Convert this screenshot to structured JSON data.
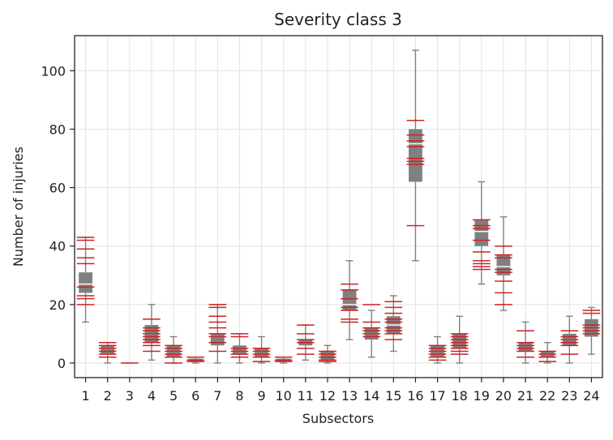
{
  "chart_data": {
    "type": "boxplot",
    "title": "Severity class 3",
    "xlabel": "Subsectors",
    "ylabel": "Number of injuries",
    "categories": [
      "1",
      "2",
      "3",
      "4",
      "5",
      "6",
      "7",
      "8",
      "9",
      "10",
      "11",
      "12",
      "13",
      "14",
      "15",
      "16",
      "17",
      "18",
      "19",
      "20",
      "21",
      "22",
      "23",
      "24"
    ],
    "ylim": [
      -5,
      112
    ],
    "yticks": [
      0,
      20,
      40,
      60,
      80,
      100
    ],
    "grid": true,
    "colors": {
      "box": "#808080",
      "whisker": "#808080",
      "median": "#ffffff",
      "points": "#cc2222"
    },
    "boxes": [
      {
        "whislo": 14,
        "q1": 24,
        "med": 27,
        "q3": 31,
        "whishi": 43
      },
      {
        "whislo": 0,
        "q1": 3,
        "med": 5,
        "q3": 6,
        "whishi": 7
      },
      {
        "whislo": 0,
        "q1": 0,
        "med": 0,
        "q3": 0,
        "whishi": 0
      },
      {
        "whislo": 1,
        "q1": 7,
        "med": 10,
        "q3": 13,
        "whishi": 20
      },
      {
        "whislo": 0,
        "q1": 2,
        "med": 4,
        "q3": 6,
        "whishi": 9
      },
      {
        "whislo": 0,
        "q1": 0.5,
        "med": 1,
        "q3": 1.5,
        "whishi": 2
      },
      {
        "whislo": 0,
        "q1": 6,
        "med": 9,
        "q3": 10,
        "whishi": 20
      },
      {
        "whislo": 0,
        "q1": 3,
        "med": 4,
        "q3": 6,
        "whishi": 10
      },
      {
        "whislo": 0,
        "q1": 2,
        "med": 4,
        "q3": 5,
        "whishi": 9
      },
      {
        "whislo": 0,
        "q1": 0.5,
        "med": 1,
        "q3": 1.5,
        "whishi": 2
      },
      {
        "whislo": 1,
        "q1": 6,
        "med": 7,
        "q3": 8,
        "whishi": 13
      },
      {
        "whislo": 0,
        "q1": 1,
        "med": 2,
        "q3": 4,
        "whishi": 6
      },
      {
        "whislo": 8,
        "q1": 18,
        "med": 20,
        "q3": 25,
        "whishi": 35
      },
      {
        "whislo": 2,
        "q1": 8,
        "med": 10,
        "q3": 12,
        "whishi": 18
      },
      {
        "whislo": 4,
        "q1": 10,
        "med": 13,
        "q3": 16,
        "whishi": 23
      },
      {
        "whislo": 35,
        "q1": 62,
        "med": 75,
        "q3": 80,
        "whishi": 107
      },
      {
        "whislo": 0,
        "q1": 2,
        "med": 4,
        "q3": 6,
        "whishi": 9
      },
      {
        "whislo": 0,
        "q1": 5,
        "med": 7,
        "q3": 10,
        "whishi": 16
      },
      {
        "whislo": 27,
        "q1": 40,
        "med": 45,
        "q3": 49,
        "whishi": 62
      },
      {
        "whislo": 18,
        "q1": 30,
        "med": 33,
        "q3": 37,
        "whishi": 50
      },
      {
        "whislo": 0,
        "q1": 4,
        "med": 6,
        "q3": 7,
        "whishi": 14
      },
      {
        "whislo": 0,
        "q1": 2,
        "med": 3,
        "q3": 4,
        "whishi": 7
      },
      {
        "whislo": 0,
        "q1": 6,
        "med": 8,
        "q3": 10,
        "whishi": 16
      },
      {
        "whislo": 3,
        "q1": 9,
        "med": 12,
        "q3": 15,
        "whishi": 19
      }
    ],
    "points": [
      [
        20,
        22,
        23,
        26,
        34,
        36,
        39,
        42,
        43
      ],
      [
        2,
        3,
        4,
        5,
        6,
        7
      ],
      [
        0
      ],
      [
        4,
        6,
        7,
        8,
        9,
        10,
        11,
        12,
        15
      ],
      [
        0,
        2,
        3,
        4,
        5,
        6
      ],
      [
        0.5,
        1,
        2
      ],
      [
        4,
        7,
        9,
        10,
        12,
        14,
        16,
        19,
        20
      ],
      [
        2,
        3,
        4,
        5,
        9,
        10
      ],
      [
        0.5,
        2,
        3,
        4,
        5
      ],
      [
        0.5,
        1,
        2
      ],
      [
        3,
        5,
        7,
        8,
        10,
        13
      ],
      [
        0.5,
        1,
        2,
        3,
        4
      ],
      [
        14,
        15,
        18,
        19,
        22,
        25,
        27
      ],
      [
        9,
        10,
        11,
        12,
        14,
        20
      ],
      [
        8,
        10,
        11,
        12,
        14,
        15,
        17,
        19,
        21
      ],
      [
        47,
        68,
        69,
        70,
        74,
        76,
        78,
        83
      ],
      [
        1,
        2,
        3,
        4,
        5,
        6
      ],
      [
        3,
        4,
        5,
        6,
        7,
        8,
        9,
        10
      ],
      [
        32,
        33,
        34,
        35,
        38,
        42,
        46,
        47,
        49
      ],
      [
        20,
        24,
        28,
        31,
        32,
        36,
        37,
        40
      ],
      [
        2,
        4,
        5,
        6,
        7,
        11
      ],
      [
        0.5,
        2,
        3,
        4
      ],
      [
        3,
        6,
        7,
        8,
        9,
        11
      ],
      [
        10,
        11,
        12,
        13,
        17,
        18
      ]
    ]
  }
}
